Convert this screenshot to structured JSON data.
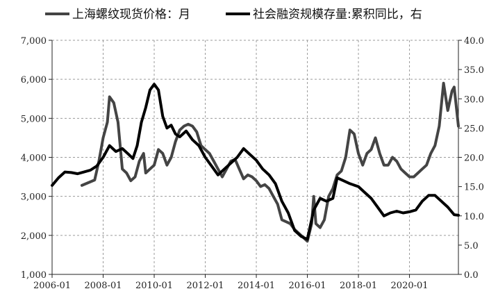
{
  "chart_data": {
    "type": "line",
    "legend": "top",
    "grid": true,
    "x_range": [
      "2006-01",
      "2021-12"
    ],
    "x_ticks": [
      "2006-01",
      "2008-01",
      "2010-01",
      "2012-01",
      "2014-01",
      "2016-01",
      "2018-01",
      "2020-01"
    ],
    "y_left": {
      "range": [
        1000,
        7000
      ],
      "ticks": [
        "1,000",
        "2,000",
        "3,000",
        "4,000",
        "5,000",
        "6,000",
        "7,000"
      ]
    },
    "y_right": {
      "range": [
        0,
        40
      ],
      "ticks": [
        "0.0",
        "5.0",
        "10.0",
        "15.0",
        "20.0",
        "25.0",
        "30.0",
        "35.0",
        "40.0"
      ]
    },
    "series": [
      {
        "name": "上海螺纹现货价格：月",
        "axis": "left",
        "color": "#444444",
        "points": [
          [
            "2007-03",
            3280
          ],
          [
            "2007-06",
            3350
          ],
          [
            "2007-09",
            3420
          ],
          [
            "2007-11",
            3900
          ],
          [
            "2008-01",
            4500
          ],
          [
            "2008-03",
            4900
          ],
          [
            "2008-04",
            5550
          ],
          [
            "2008-06",
            5400
          ],
          [
            "2008-08",
            4900
          ],
          [
            "2008-09",
            4300
          ],
          [
            "2008-10",
            3700
          ],
          [
            "2008-12",
            3600
          ],
          [
            "2009-02",
            3400
          ],
          [
            "2009-04",
            3500
          ],
          [
            "2009-06",
            3900
          ],
          [
            "2009-08",
            4100
          ],
          [
            "2009-09",
            3600
          ],
          [
            "2009-11",
            3700
          ],
          [
            "2010-01",
            3800
          ],
          [
            "2010-03",
            4200
          ],
          [
            "2010-05",
            4100
          ],
          [
            "2010-07",
            3800
          ],
          [
            "2010-09",
            4000
          ],
          [
            "2010-11",
            4400
          ],
          [
            "2011-01",
            4700
          ],
          [
            "2011-03",
            4800
          ],
          [
            "2011-05",
            4850
          ],
          [
            "2011-07",
            4800
          ],
          [
            "2011-09",
            4650
          ],
          [
            "2011-11",
            4300
          ],
          [
            "2012-01",
            4200
          ],
          [
            "2012-03",
            4100
          ],
          [
            "2012-05",
            3900
          ],
          [
            "2012-07",
            3700
          ],
          [
            "2012-09",
            3500
          ],
          [
            "2012-11",
            3700
          ],
          [
            "2013-01",
            3900
          ],
          [
            "2013-03",
            3950
          ],
          [
            "2013-05",
            3700
          ],
          [
            "2013-07",
            3450
          ],
          [
            "2013-09",
            3550
          ],
          [
            "2013-11",
            3500
          ],
          [
            "2014-01",
            3400
          ],
          [
            "2014-03",
            3250
          ],
          [
            "2014-05",
            3300
          ],
          [
            "2014-07",
            3200
          ],
          [
            "2014-09",
            3000
          ],
          [
            "2014-11",
            2800
          ],
          [
            "2015-01",
            2400
          ],
          [
            "2015-03",
            2350
          ],
          [
            "2015-05",
            2300
          ],
          [
            "2015-07",
            2150
          ],
          [
            "2015-09",
            2050
          ],
          [
            "2015-11",
            1950
          ],
          [
            "2016-01",
            1850
          ],
          [
            "2016-03",
            2300
          ],
          [
            "2016-04",
            3000
          ],
          [
            "2016-05",
            2300
          ],
          [
            "2016-07",
            2200
          ],
          [
            "2016-09",
            2400
          ],
          [
            "2016-11",
            3000
          ],
          [
            "2017-01",
            3200
          ],
          [
            "2017-03",
            3550
          ],
          [
            "2017-05",
            3650
          ],
          [
            "2017-07",
            4000
          ],
          [
            "2017-09",
            4700
          ],
          [
            "2017-11",
            4600
          ],
          [
            "2018-01",
            4100
          ],
          [
            "2018-03",
            3800
          ],
          [
            "2018-05",
            4100
          ],
          [
            "2018-07",
            4200
          ],
          [
            "2018-09",
            4500
          ],
          [
            "2018-11",
            4100
          ],
          [
            "2019-01",
            3800
          ],
          [
            "2019-03",
            3800
          ],
          [
            "2019-05",
            4000
          ],
          [
            "2019-07",
            3900
          ],
          [
            "2019-09",
            3700
          ],
          [
            "2019-11",
            3600
          ],
          [
            "2020-01",
            3500
          ],
          [
            "2020-03",
            3500
          ],
          [
            "2020-05",
            3600
          ],
          [
            "2020-07",
            3700
          ],
          [
            "2020-09",
            3800
          ],
          [
            "2020-11",
            4100
          ],
          [
            "2021-01",
            4300
          ],
          [
            "2021-03",
            4800
          ],
          [
            "2021-05",
            5900
          ],
          [
            "2021-07",
            5200
          ],
          [
            "2021-09",
            5700
          ],
          [
            "2021-10",
            5800
          ],
          [
            "2021-12",
            4800
          ]
        ]
      },
      {
        "name": "社会融资规模存量:累积同比，右",
        "axis": "right",
        "color": "#000000",
        "points": [
          [
            "2006-01",
            15.2
          ],
          [
            "2006-04",
            16.5
          ],
          [
            "2006-07",
            17.5
          ],
          [
            "2006-10",
            17.4
          ],
          [
            "2007-01",
            17.2
          ],
          [
            "2007-04",
            17.5
          ],
          [
            "2007-07",
            17.8
          ],
          [
            "2007-10",
            18.5
          ],
          [
            "2008-01",
            20.0
          ],
          [
            "2008-04",
            22.0
          ],
          [
            "2008-07",
            21.0
          ],
          [
            "2008-10",
            21.5
          ],
          [
            "2009-01",
            20.5
          ],
          [
            "2009-03",
            19.8
          ],
          [
            "2009-05",
            22.0
          ],
          [
            "2009-07",
            26.0
          ],
          [
            "2009-09",
            28.5
          ],
          [
            "2009-11",
            31.5
          ],
          [
            "2010-01",
            32.5
          ],
          [
            "2010-03",
            31.5
          ],
          [
            "2010-05",
            27.0
          ],
          [
            "2010-07",
            25.0
          ],
          [
            "2010-09",
            25.5
          ],
          [
            "2010-11",
            24.0
          ],
          [
            "2011-01",
            23.5
          ],
          [
            "2011-04",
            24.5
          ],
          [
            "2011-07",
            23.0
          ],
          [
            "2011-10",
            22.0
          ],
          [
            "2012-01",
            20.0
          ],
          [
            "2012-04",
            18.5
          ],
          [
            "2012-07",
            17.0
          ],
          [
            "2012-10",
            18.0
          ],
          [
            "2013-01",
            19.0
          ],
          [
            "2013-04",
            20.0
          ],
          [
            "2013-07",
            21.5
          ],
          [
            "2013-10",
            20.5
          ],
          [
            "2014-01",
            19.5
          ],
          [
            "2014-04",
            18.0
          ],
          [
            "2014-07",
            17.0
          ],
          [
            "2014-10",
            15.5
          ],
          [
            "2015-01",
            12.5
          ],
          [
            "2015-04",
            10.5
          ],
          [
            "2015-07",
            7.5
          ],
          [
            "2015-10",
            6.5
          ],
          [
            "2016-01",
            6.0
          ],
          [
            "2016-04",
            11.0
          ],
          [
            "2016-07",
            13.0
          ],
          [
            "2016-10",
            12.5
          ],
          [
            "2017-01",
            13.0
          ],
          [
            "2017-03",
            16.5
          ],
          [
            "2017-06",
            16.0
          ],
          [
            "2017-09",
            15.5
          ],
          [
            "2018-01",
            15.0
          ],
          [
            "2018-04",
            14.0
          ],
          [
            "2018-07",
            13.0
          ],
          [
            "2018-10",
            11.5
          ],
          [
            "2019-01",
            10.0
          ],
          [
            "2019-04",
            10.5
          ],
          [
            "2019-07",
            10.8
          ],
          [
            "2019-10",
            10.5
          ],
          [
            "2020-01",
            10.7
          ],
          [
            "2020-04",
            11.0
          ],
          [
            "2020-07",
            12.5
          ],
          [
            "2020-10",
            13.5
          ],
          [
            "2021-01",
            13.5
          ],
          [
            "2021-04",
            12.5
          ],
          [
            "2021-07",
            11.5
          ],
          [
            "2021-10",
            10.2
          ],
          [
            "2021-12",
            10.1
          ]
        ]
      }
    ]
  }
}
